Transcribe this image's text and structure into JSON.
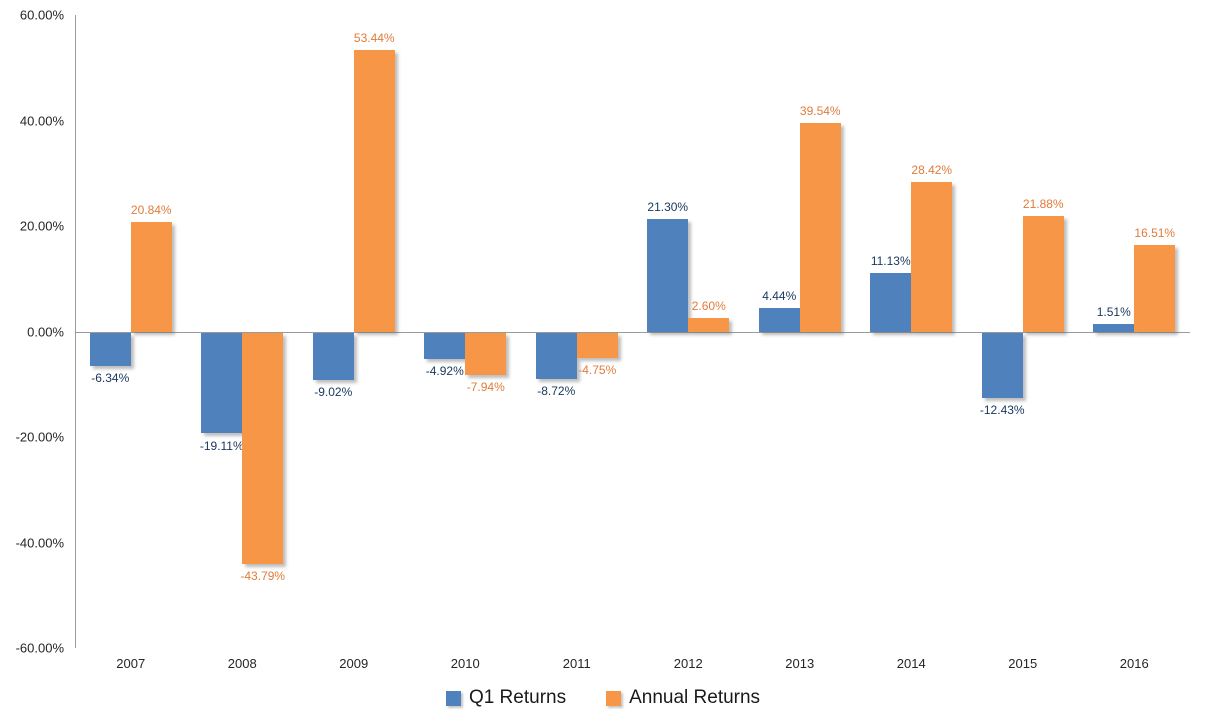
{
  "chart_data": {
    "type": "bar",
    "title": "",
    "xlabel": "",
    "ylabel": "",
    "categories": [
      "2007",
      "2008",
      "2009",
      "2010",
      "2011",
      "2012",
      "2013",
      "2014",
      "2015",
      "2016"
    ],
    "series": [
      {
        "name": "Q1 Returns",
        "color": "#4F81BD",
        "label_color": "#17375E",
        "values": [
          -6.34,
          -19.11,
          -9.02,
          -4.92,
          -8.72,
          21.3,
          4.44,
          11.13,
          -12.43,
          1.51
        ],
        "data_labels": [
          "-6.34%",
          "-19.11%",
          "-9.02%",
          "-4.92%",
          "-8.72%",
          "21.30%",
          "4.44%",
          "11.13%",
          "-12.43%",
          "1.51%"
        ]
      },
      {
        "name": "Annual Returns",
        "color": "#F79646",
        "label_color": "#E07C39",
        "values": [
          20.84,
          -43.79,
          53.44,
          -7.94,
          -4.75,
          2.6,
          39.54,
          28.42,
          21.88,
          16.51
        ],
        "data_labels": [
          "20.84%",
          "-43.79%",
          "53.44%",
          "-7.94%",
          "-4.75%",
          "2.60%",
          "39.54%",
          "28.42%",
          "21.88%",
          "16.51%"
        ]
      }
    ],
    "ylim": [
      -60,
      60
    ],
    "ytick_step": 20,
    "ytick_labels": [
      "60.00%",
      "40.00%",
      "20.00%",
      "0.00%",
      "-20.00%",
      "-40.00%",
      "-60.00%"
    ],
    "grid": false,
    "legend_position": "bottom",
    "axis_line_color": "#9b9b9b",
    "tick_label_color": "#262626",
    "background_color": "#ffffff"
  }
}
